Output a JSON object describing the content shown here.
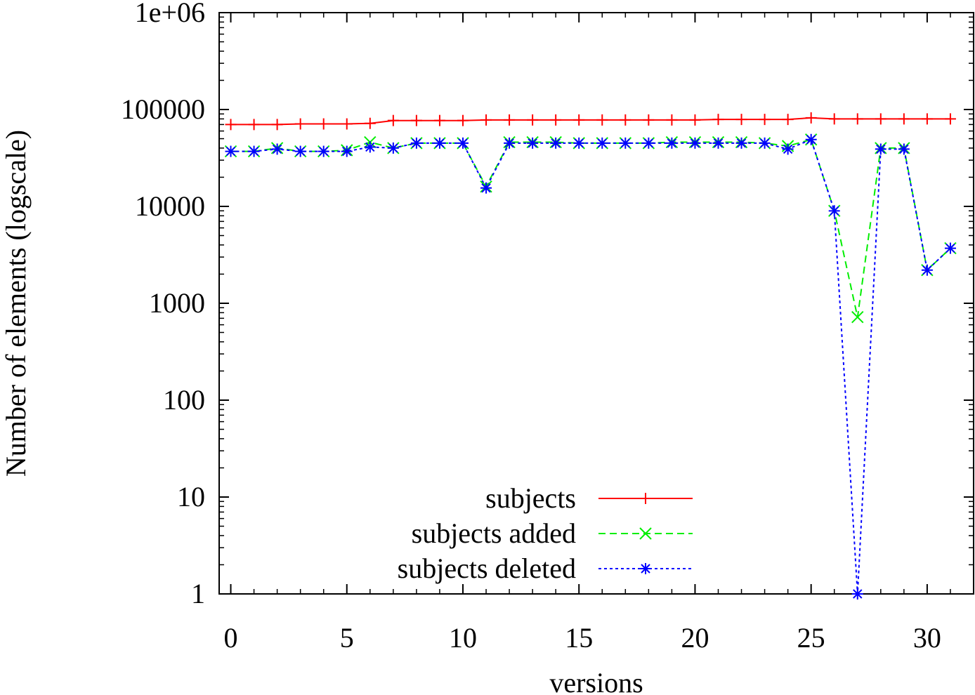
{
  "chart_data": {
    "type": "line",
    "xlabel": "versions",
    "ylabel": "Number of elements (logscale)",
    "y_scale": "log",
    "xlim": [
      -0.5,
      32
    ],
    "ylim": [
      1,
      1000000
    ],
    "x_ticks": [
      0,
      5,
      10,
      15,
      20,
      25,
      30
    ],
    "x_tick_labels": [
      "0",
      "5",
      "10",
      "15",
      "20",
      "25",
      "30"
    ],
    "y_ticks": [
      1,
      10,
      100,
      1000,
      10000,
      100000,
      1000000
    ],
    "y_tick_labels": [
      "1",
      "10",
      "100",
      "1000",
      "10000",
      "100000",
      "1e+06"
    ],
    "grid": false,
    "legend_position": "bottom-center",
    "x": [
      0,
      1,
      2,
      3,
      4,
      5,
      6,
      7,
      8,
      9,
      10,
      11,
      12,
      13,
      14,
      15,
      16,
      17,
      18,
      19,
      20,
      21,
      22,
      23,
      24,
      25,
      26,
      27,
      28,
      29,
      30,
      31
    ],
    "series": [
      {
        "name": "subjects",
        "color": "#ff0000",
        "line_style": "solid",
        "marker": "plus",
        "values": [
          70000,
          70000,
          70000,
          71000,
          71000,
          71000,
          72000,
          77000,
          77000,
          77000,
          77000,
          78000,
          78000,
          78000,
          78000,
          78000,
          78000,
          78000,
          78000,
          78000,
          78000,
          79000,
          79000,
          79000,
          79000,
          82000,
          80000,
          80000,
          80000,
          80000,
          80000,
          80000
        ]
      },
      {
        "name": "subjects added",
        "color": "#00ee00",
        "line_style": "dashed",
        "marker": "cross",
        "values": [
          37000,
          37000,
          40000,
          37000,
          37000,
          38000,
          46000,
          40000,
          45000,
          45000,
          45000,
          16000,
          46000,
          46000,
          46000,
          45000,
          45000,
          45000,
          45000,
          46000,
          46000,
          46000,
          46000,
          45000,
          42000,
          49000,
          9000,
          720,
          40000,
          40000,
          2200,
          3700
        ]
      },
      {
        "name": "subjects deleted",
        "color": "#0000ff",
        "line_style": "dotted",
        "marker": "star",
        "values": [
          37000,
          37000,
          39000,
          37000,
          37000,
          37000,
          41000,
          40000,
          45000,
          45000,
          45000,
          15500,
          45000,
          45000,
          45000,
          45000,
          45000,
          45000,
          45000,
          45000,
          45000,
          45000,
          45000,
          45000,
          39000,
          49000,
          9000,
          1,
          39000,
          39000,
          2200,
          3700
        ]
      }
    ]
  }
}
